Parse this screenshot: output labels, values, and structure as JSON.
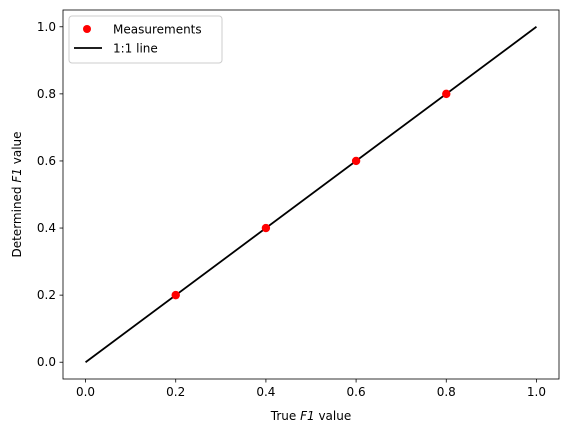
{
  "chart_data": {
    "type": "scatter",
    "xlabel": {
      "prefix": "True ",
      "italic": "F1",
      "suffix": " value"
    },
    "ylabel": {
      "prefix": "Determined ",
      "italic": "F1",
      "suffix": " value"
    },
    "xlim": [
      -0.05,
      1.05
    ],
    "ylim": [
      -0.05,
      1.05
    ],
    "xticks": [
      0.0,
      0.2,
      0.4,
      0.6,
      0.8,
      1.0
    ],
    "yticks": [
      0.0,
      0.2,
      0.4,
      0.6,
      0.8,
      1.0
    ],
    "xtick_labels": [
      "0.0",
      "0.2",
      "0.4",
      "0.6",
      "0.8",
      "1.0"
    ],
    "ytick_labels": [
      "0.0",
      "0.2",
      "0.4",
      "0.6",
      "0.8",
      "1.0"
    ],
    "grid": false,
    "legend_position": "upper-left",
    "series": [
      {
        "name": "Measurements",
        "kind": "scatter",
        "color": "#ff0000",
        "x": [
          0.2,
          0.4,
          0.6,
          0.8
        ],
        "y": [
          0.2,
          0.4,
          0.6,
          0.8
        ]
      },
      {
        "name": "1:1 line",
        "kind": "line",
        "color": "#000000",
        "x": [
          0.0,
          1.0
        ],
        "y": [
          0.0,
          1.0
        ]
      }
    ]
  }
}
